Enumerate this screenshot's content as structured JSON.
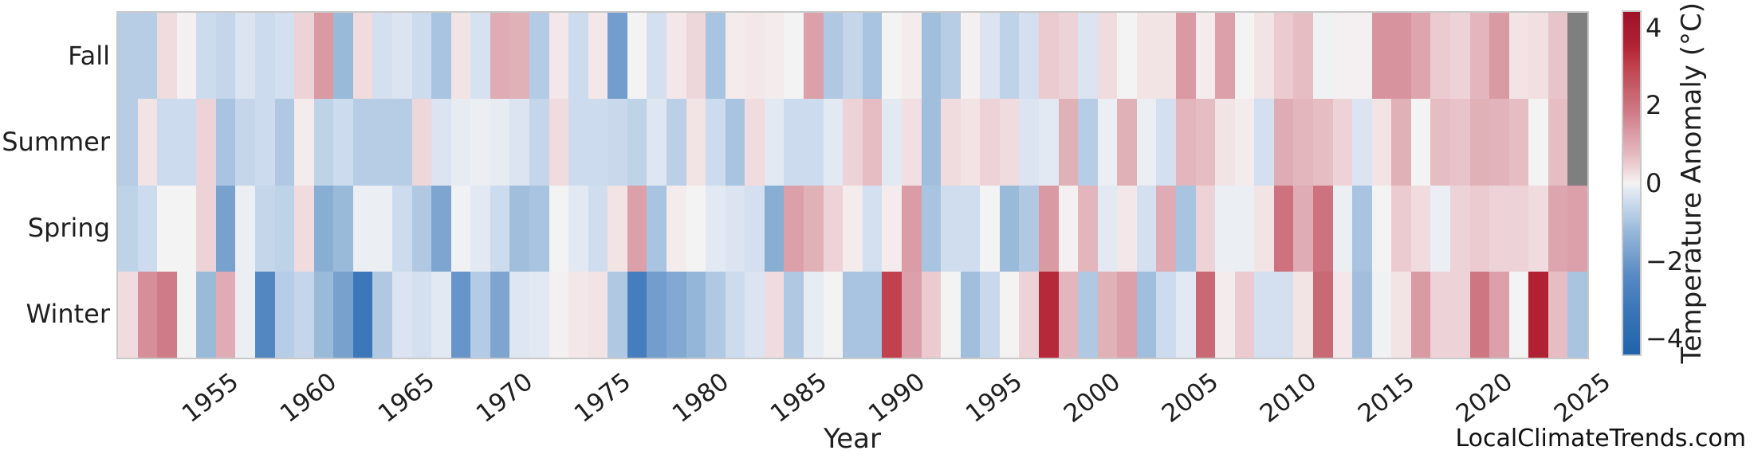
{
  "credit": "LocalClimateTrends.com",
  "chart_data": {
    "type": "heatmap",
    "title": "",
    "xlabel": "Year",
    "ylabel": "",
    "rows": [
      "Fall",
      "Summer",
      "Spring",
      "Winter"
    ],
    "years": [
      1951,
      1952,
      1953,
      1954,
      1955,
      1956,
      1957,
      1958,
      1959,
      1960,
      1961,
      1962,
      1963,
      1964,
      1965,
      1966,
      1967,
      1968,
      1969,
      1970,
      1971,
      1972,
      1973,
      1974,
      1975,
      1976,
      1977,
      1978,
      1979,
      1980,
      1981,
      1982,
      1983,
      1984,
      1985,
      1986,
      1987,
      1988,
      1989,
      1990,
      1991,
      1992,
      1993,
      1994,
      1995,
      1996,
      1997,
      1998,
      1999,
      2000,
      2001,
      2002,
      2003,
      2004,
      2005,
      2006,
      2007,
      2008,
      2009,
      2010,
      2011,
      2012,
      2013,
      2014,
      2015,
      2016,
      2017,
      2018,
      2019,
      2020,
      2021,
      2022,
      2023,
      2024,
      2025
    ],
    "x_tick_years": [
      1955,
      1960,
      1965,
      1970,
      1975,
      1980,
      1985,
      1990,
      1995,
      2000,
      2005,
      2010,
      2015,
      2020,
      2025
    ],
    "grid": false,
    "legend_position": "right-colorbar",
    "colorbar": {
      "label": "Temperature Anomaly (°C)",
      "vmin": -4.4,
      "vmax": 4.4,
      "ticks": [
        {
          "v": 4,
          "label": "4"
        },
        {
          "v": 2,
          "label": "2"
        },
        {
          "v": 0,
          "label": "0"
        },
        {
          "v": -2,
          "label": "−2"
        },
        {
          "v": -4,
          "label": "−4"
        }
      ]
    },
    "missing_value_color": "#7f7f7f",
    "missing_note": "Fall 2025 and Summer 2025 cells are gray (no data)",
    "diverging_colormap_anchors": [
      {
        "v": -4.4,
        "c": "#2063ab"
      },
      {
        "v": -3.2,
        "c": "#3c77b9"
      },
      {
        "v": -2.4,
        "c": "#5689c3"
      },
      {
        "v": -1.8,
        "c": "#78a1ce"
      },
      {
        "v": -1.2,
        "c": "#9abada"
      },
      {
        "v": -0.8,
        "c": "#b7cde5"
      },
      {
        "v": -0.45,
        "c": "#d0ddee"
      },
      {
        "v": -0.2,
        "c": "#e2e9f2"
      },
      {
        "v": 0.0,
        "c": "#f4f3f3"
      },
      {
        "v": 0.2,
        "c": "#f2e3e5"
      },
      {
        "v": 0.45,
        "c": "#eccfd3"
      },
      {
        "v": 0.8,
        "c": "#e3b6bd"
      },
      {
        "v": 1.2,
        "c": "#dba0aa"
      },
      {
        "v": 1.8,
        "c": "#d07c88"
      },
      {
        "v": 2.4,
        "c": "#c65f6b"
      },
      {
        "v": 3.0,
        "c": "#c0424e"
      },
      {
        "v": 3.5,
        "c": "#b22336"
      },
      {
        "v": 4.4,
        "c": "#9e1128"
      }
    ],
    "series": [
      {
        "name": "Fall",
        "values": [
          -0.8,
          -0.8,
          0.3,
          0.05,
          -0.5,
          -0.6,
          -0.3,
          -0.5,
          -0.4,
          0.4,
          1.3,
          -1.2,
          0.3,
          -0.4,
          -0.3,
          -0.5,
          -1.0,
          0.2,
          -0.35,
          1.0,
          0.9,
          -0.85,
          0.15,
          -0.5,
          0.15,
          -1.9,
          0.0,
          -0.4,
          0.15,
          0.35,
          -1.0,
          0.1,
          0.15,
          0.1,
          0.0,
          1.2,
          -0.9,
          -0.6,
          -1.0,
          0.0,
          0.1,
          -1.1,
          -0.8,
          0.05,
          -0.3,
          -0.7,
          -0.4,
          0.5,
          0.4,
          -0.3,
          0.3,
          0.0,
          0.2,
          0.2,
          1.3,
          0.1,
          1.2,
          0.0,
          0.2,
          0.5,
          0.7,
          -0.05,
          0.05,
          0.05,
          1.4,
          1.4,
          1.1,
          0.5,
          0.4,
          0.8,
          1.3,
          0.2,
          0.25,
          0.6,
          null
        ]
      },
      {
        "name": "Summer",
        "values": [
          -0.8,
          0.2,
          -0.5,
          -0.5,
          0.4,
          -1.0,
          -0.6,
          -0.5,
          -0.9,
          0.1,
          -0.7,
          -0.5,
          -0.8,
          -0.8,
          -0.8,
          0.35,
          -0.3,
          -0.15,
          -0.1,
          -0.15,
          -0.3,
          -0.6,
          0.3,
          -0.5,
          -0.5,
          -0.55,
          -0.7,
          -0.25,
          -0.75,
          0.2,
          -0.5,
          -1.0,
          0.3,
          -0.2,
          -0.5,
          -0.5,
          -0.2,
          0.4,
          0.7,
          -0.2,
          0.25,
          -1.1,
          0.3,
          0.2,
          0.4,
          0.3,
          -0.3,
          -0.2,
          0.9,
          -0.8,
          -0.1,
          0.9,
          -0.1,
          -0.4,
          0.8,
          0.7,
          0.2,
          0.1,
          -0.4,
          1.0,
          0.8,
          0.7,
          0.4,
          -0.3,
          0.2,
          0.9,
          0.0,
          0.7,
          0.6,
          0.9,
          0.85,
          0.7,
          0.0,
          0.7,
          null
        ]
      },
      {
        "name": "Spring",
        "values": [
          -0.7,
          -0.5,
          0.0,
          0.0,
          0.4,
          -1.8,
          -0.1,
          -0.6,
          -0.7,
          0.3,
          -1.5,
          -1.2,
          -0.1,
          -0.1,
          -0.5,
          -0.9,
          -1.7,
          -0.05,
          -0.2,
          -0.5,
          -1.1,
          -1.0,
          0.0,
          -0.2,
          -0.45,
          0.2,
          1.2,
          -1.0,
          0.1,
          0.0,
          -0.2,
          -0.3,
          -0.4,
          -1.5,
          1.2,
          0.9,
          0.4,
          0.1,
          -0.4,
          0.1,
          1.25,
          -1.0,
          -0.45,
          -0.45,
          0.0,
          -1.2,
          -0.9,
          1.3,
          0.05,
          0.8,
          -0.2,
          0.15,
          -0.4,
          1.0,
          -1.0,
          0.4,
          -0.1,
          -0.1,
          0.2,
          2.0,
          1.0,
          2.0,
          -0.1,
          -1.0,
          0.0,
          0.5,
          0.3,
          -0.1,
          0.4,
          0.5,
          0.4,
          0.4,
          0.3,
          1.1,
          1.2
        ]
      },
      {
        "name": "Winter",
        "values": [
          0.3,
          1.5,
          1.8,
          0.0,
          -1.2,
          1.0,
          -0.1,
          -2.5,
          -0.8,
          -0.6,
          -1.2,
          -1.8,
          -3.2,
          -0.9,
          -0.3,
          -0.4,
          -0.2,
          -2.1,
          -0.85,
          -1.7,
          -0.25,
          -0.2,
          0.05,
          0.15,
          0.2,
          -0.9,
          -2.9,
          -1.9,
          -1.6,
          -1.3,
          -0.9,
          -0.5,
          -0.3,
          0.3,
          -0.9,
          -0.15,
          0.0,
          -1.0,
          -1.0,
          3.0,
          1.2,
          0.5,
          0.0,
          -1.1,
          -0.55,
          0.0,
          0.4,
          3.4,
          0.8,
          -0.9,
          0.9,
          1.2,
          -1.1,
          -0.5,
          -0.2,
          2.2,
          0.1,
          0.5,
          -0.4,
          -0.4,
          0.2,
          2.2,
          0.15,
          -1.1,
          -0.05,
          0.2,
          1.3,
          0.4,
          0.4,
          1.9,
          1.2,
          0.0,
          3.6,
          0.7,
          -1.0
        ]
      }
    ]
  }
}
